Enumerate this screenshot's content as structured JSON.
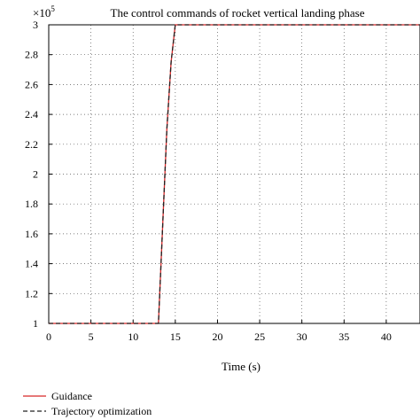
{
  "chart_data": {
    "type": "line",
    "title": "The control commands of rocket vertical landing phase",
    "xlabel": "Time (s)",
    "ylabel": "",
    "xlim": [
      0,
      44
    ],
    "ylim": [
      1,
      3
    ],
    "y_multiplier_label": "×10",
    "y_multiplier_exp": "5",
    "x_ticks": [
      0,
      5,
      10,
      15,
      20,
      25,
      30,
      35,
      40
    ],
    "x_tick_labels": [
      "0",
      "5",
      "10",
      "15",
      "20",
      "25",
      "30",
      "35",
      "40"
    ],
    "y_ticks": [
      1,
      1.2,
      1.4,
      1.6,
      1.8,
      2,
      2.2,
      2.4,
      2.6,
      2.8,
      3
    ],
    "y_tick_labels": [
      "1",
      "1.2",
      "1.4",
      "1.6",
      "1.8",
      "2",
      "2.2",
      "2.4",
      "2.6",
      "2.8",
      "3"
    ],
    "grid": true,
    "legend_position": "bottom-left",
    "series": [
      {
        "name": "Guidance",
        "color": "#d62728",
        "style": "solid",
        "x": [
          0,
          13,
          14,
          14.5,
          15,
          44
        ],
        "y": [
          1,
          1,
          2.3,
          2.75,
          3,
          3
        ]
      },
      {
        "name": "Trajectory optimization",
        "color": "#222222",
        "style": "dashed",
        "x": [
          0,
          13,
          14,
          14.5,
          15,
          44
        ],
        "y": [
          1,
          1,
          2.3,
          2.75,
          3,
          3
        ]
      }
    ]
  }
}
